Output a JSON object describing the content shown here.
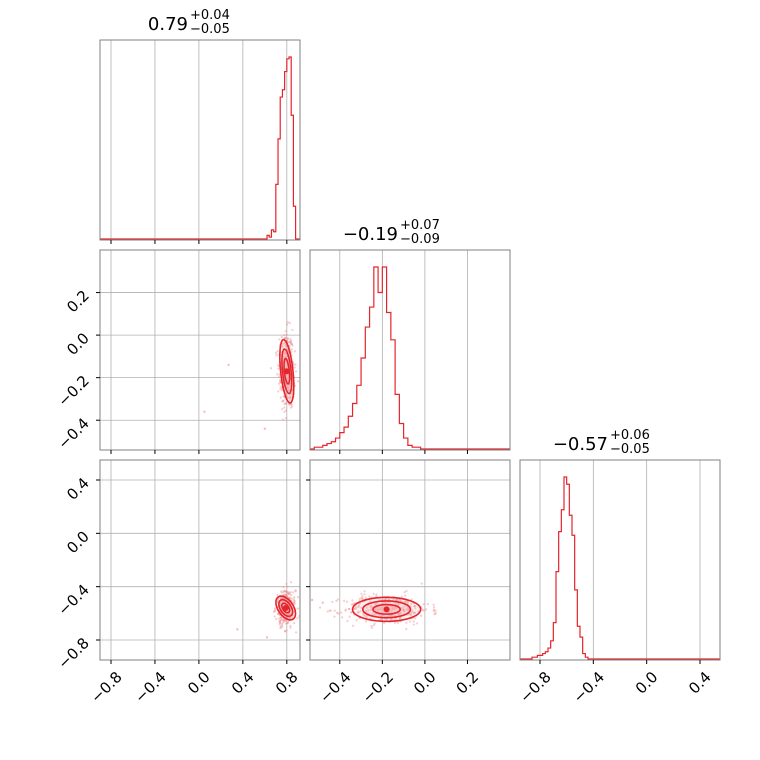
{
  "chart_data": {
    "type": "corner",
    "colors": {
      "series": "#e4262c",
      "fill": "#f4b6b8",
      "scatter": "#ee8f92",
      "grid": "#b0b0b0",
      "frame": "#808080"
    },
    "grid": true,
    "parameters": [
      {
        "title_main": "0.79",
        "title_plus": "+0.04",
        "title_minus": "−0.05",
        "range": [
          -0.9,
          0.92
        ],
        "ticks": [
          -0.8,
          -0.4,
          0.0,
          0.4,
          0.8
        ],
        "tick_labels": [
          "−0.8",
          "−0.4",
          "0.0",
          "0.4",
          "0.8"
        ]
      },
      {
        "title_main": "−0.19",
        "title_plus": "+0.07",
        "title_minus": "−0.09",
        "range": [
          -0.54,
          0.4
        ],
        "ticks": [
          -0.4,
          -0.2,
          0.0,
          0.2
        ],
        "tick_labels": [
          "−0.4",
          "−0.2",
          "0.0",
          "0.2"
        ]
      },
      {
        "title_main": "−0.57",
        "title_plus": "+0.06",
        "title_minus": "−0.05",
        "range": [
          -0.95,
          0.55
        ],
        "ticks": [
          -0.8,
          -0.4,
          0.0,
          0.4
        ],
        "tick_labels": [
          "−0.8",
          "−0.4",
          "0.0",
          "0.4"
        ]
      }
    ],
    "histograms": [
      {
        "param": 0,
        "bins": [
          0.6,
          0.62,
          0.64,
          0.66,
          0.68,
          0.7,
          0.72,
          0.74,
          0.76,
          0.78,
          0.8,
          0.82,
          0.84,
          0.86,
          0.88
        ],
        "counts": [
          0,
          2,
          1,
          5,
          4,
          30,
          55,
          78,
          82,
          92,
          99,
          100,
          68,
          18,
          0
        ]
      },
      {
        "param": 1,
        "bins": [
          -0.54,
          -0.52,
          -0.5,
          -0.48,
          -0.46,
          -0.44,
          -0.42,
          -0.4,
          -0.38,
          -0.36,
          -0.34,
          -0.32,
          -0.3,
          -0.28,
          -0.26,
          -0.24,
          -0.22,
          -0.2,
          -0.18,
          -0.16,
          -0.14,
          -0.12,
          -0.1,
          -0.08,
          -0.06,
          -0.04,
          -0.02,
          0.0,
          0.02
        ],
        "counts": [
          0,
          1,
          1,
          2,
          3,
          4,
          6,
          9,
          12,
          18,
          25,
          35,
          50,
          67,
          78,
          100,
          86,
          100,
          75,
          60,
          30,
          14,
          6,
          2,
          1,
          1,
          0,
          0,
          0
        ]
      },
      {
        "param": 2,
        "bins": [
          -0.95,
          -0.9,
          -0.86,
          -0.82,
          -0.78,
          -0.76,
          -0.74,
          -0.72,
          -0.7,
          -0.68,
          -0.66,
          -0.64,
          -0.62,
          -0.6,
          -0.58,
          -0.56,
          -0.54,
          -0.52,
          -0.5,
          -0.48,
          -0.46,
          -0.44,
          -0.42
        ],
        "counts": [
          0,
          0,
          1,
          2,
          3,
          4,
          6,
          10,
          20,
          48,
          70,
          82,
          100,
          96,
          79,
          68,
          38,
          18,
          12,
          3,
          1,
          0,
          0
        ]
      }
    ],
    "scatter_panels": [
      {
        "x_param": 0,
        "y_param": 1,
        "center": [
          0.8,
          -0.17
        ],
        "spread": [
          0.028,
          0.075
        ],
        "rotation": 0.15,
        "outliers": [
          [
            0.05,
            -0.36
          ],
          [
            0.27,
            -0.14
          ],
          [
            0.6,
            -0.44
          ]
        ]
      },
      {
        "x_param": 0,
        "y_param": 2,
        "center": [
          0.79,
          -0.56
        ],
        "spread": [
          0.035,
          0.05
        ],
        "rotation": 0.85,
        "outliers": [
          [
            0.35,
            -0.72
          ],
          [
            0.62,
            -0.78
          ]
        ]
      },
      {
        "x_param": 1,
        "y_param": 2,
        "center": [
          -0.18,
          -0.57
        ],
        "spread": [
          0.08,
          0.045
        ],
        "rotation": 0.0,
        "outliers": [
          [
            -0.53,
            -0.5
          ],
          [
            -0.48,
            -0.52
          ],
          [
            0.05,
            -0.6
          ]
        ]
      }
    ]
  }
}
